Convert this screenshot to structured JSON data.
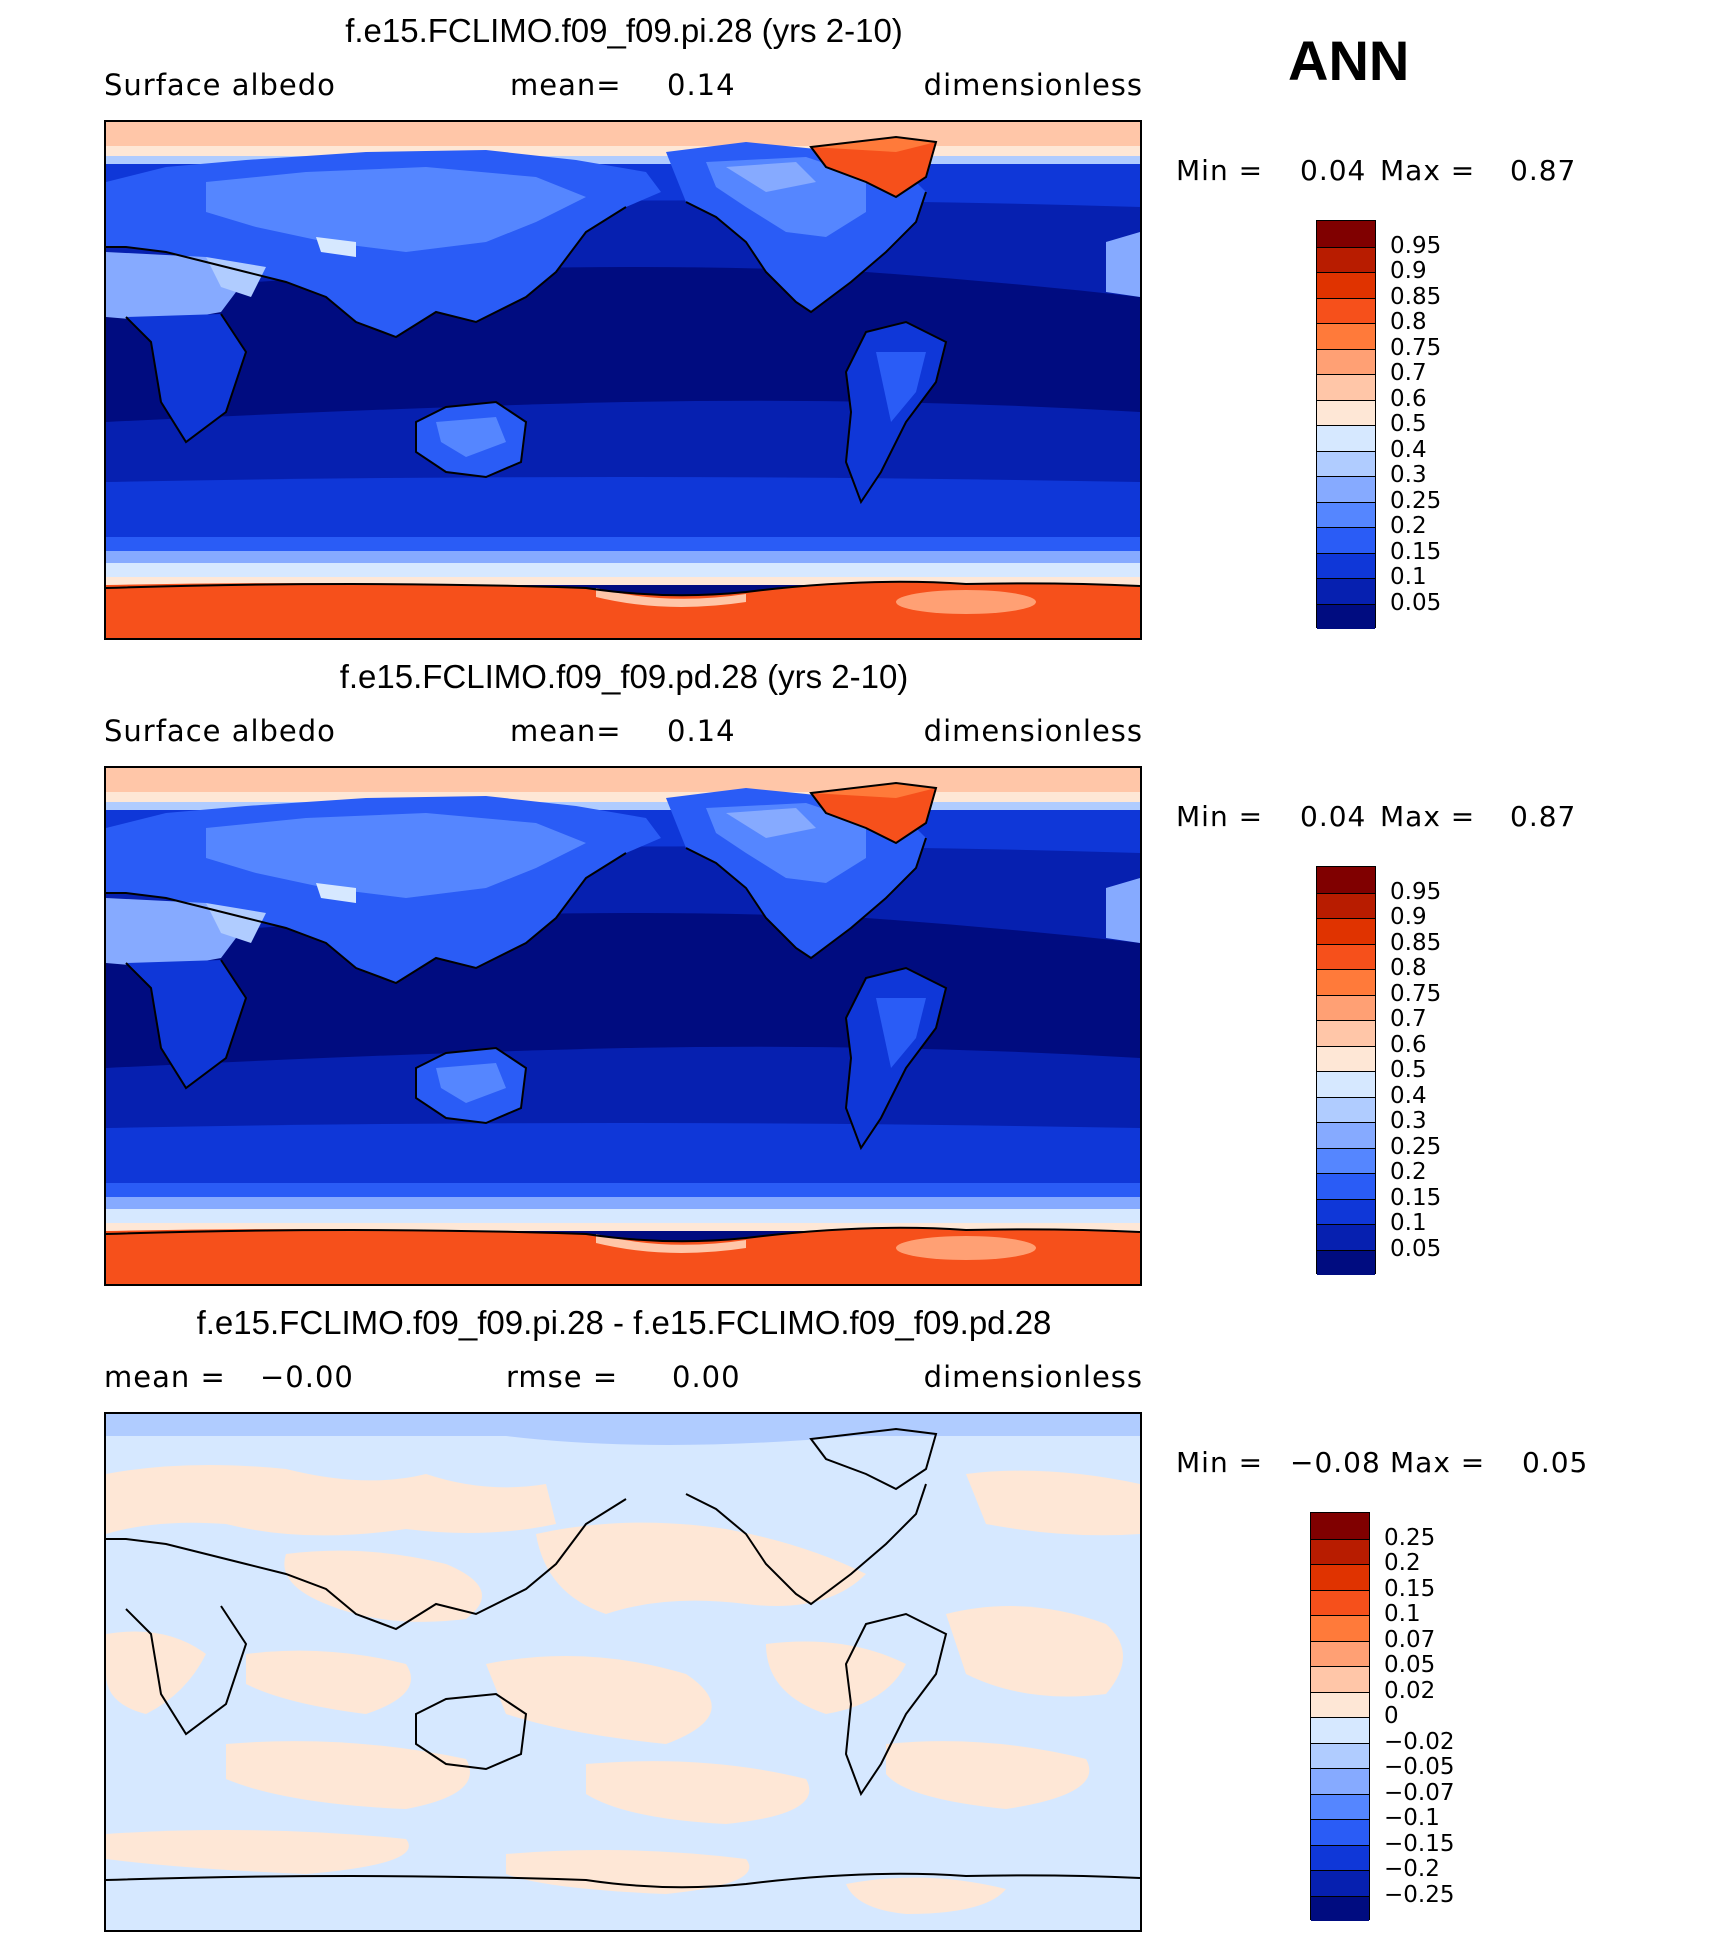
{
  "season_label": "ANN",
  "panels": [
    {
      "title": "f.e15.FCLIMO.f09_f09.pi.28 (yrs 2-10)",
      "left_label": "Surface albedo",
      "mid_label": "mean=",
      "mid_value": "0.14",
      "right_label": "dimensionless",
      "min_label": "Min =",
      "min_value": "0.04",
      "max_label": "Max =",
      "max_value": "0.87",
      "field_type": "absolute",
      "colorbar": {
        "labels": [
          "0.95",
          "0.9",
          "0.85",
          "0.8",
          "0.75",
          "0.7",
          "0.6",
          "0.5",
          "0.4",
          "0.3",
          "0.25",
          "0.2",
          "0.15",
          "0.1",
          "0.05"
        ],
        "colors": [
          "#800000",
          "#b81c00",
          "#e03300",
          "#f6501b",
          "#ff7a3a",
          "#ffa074",
          "#ffc6a8",
          "#fee7d6",
          "#d6e8ff",
          "#b0ccff",
          "#86aaff",
          "#5586ff",
          "#2a5cf6",
          "#0f37d8",
          "#0620b0",
          "#000c80"
        ]
      }
    },
    {
      "title": "f.e15.FCLIMO.f09_f09.pd.28 (yrs 2-10)",
      "left_label": "Surface albedo",
      "mid_label": "mean=",
      "mid_value": "0.14",
      "right_label": "dimensionless",
      "min_label": "Min =",
      "min_value": "0.04",
      "max_label": "Max =",
      "max_value": "0.87",
      "field_type": "absolute",
      "colorbar": {
        "labels": [
          "0.95",
          "0.9",
          "0.85",
          "0.8",
          "0.75",
          "0.7",
          "0.6",
          "0.5",
          "0.4",
          "0.3",
          "0.25",
          "0.2",
          "0.15",
          "0.1",
          "0.05"
        ],
        "colors": [
          "#800000",
          "#b81c00",
          "#e03300",
          "#f6501b",
          "#ff7a3a",
          "#ffa074",
          "#ffc6a8",
          "#fee7d6",
          "#d6e8ff",
          "#b0ccff",
          "#86aaff",
          "#5586ff",
          "#2a5cf6",
          "#0f37d8",
          "#0620b0",
          "#000c80"
        ]
      }
    },
    {
      "title": "f.e15.FCLIMO.f09_f09.pi.28 - f.e15.FCLIMO.f09_f09.pd.28",
      "left_label": "mean =",
      "left_value": "−0.00",
      "mid_label": "rmse =",
      "mid_value": "0.00",
      "right_label": "dimensionless",
      "min_label": "Min =",
      "min_value": "−0.08",
      "max_label": "Max =",
      "max_value": "0.05",
      "field_type": "difference",
      "colorbar": {
        "labels": [
          "0.25",
          "0.2",
          "0.15",
          "0.1",
          "0.07",
          "0.05",
          "0.02",
          "0",
          "−0.02",
          "−0.05",
          "−0.07",
          "−0.1",
          "−0.15",
          "−0.2",
          "−0.25"
        ],
        "colors": [
          "#800000",
          "#b81c00",
          "#e03300",
          "#f6501b",
          "#ff7a3a",
          "#ffa074",
          "#ffc6a8",
          "#fee7d6",
          "#d6e8ff",
          "#b0ccff",
          "#86aaff",
          "#5586ff",
          "#2a5cf6",
          "#0f37d8",
          "#0620b0",
          "#000c80"
        ]
      }
    }
  ]
}
